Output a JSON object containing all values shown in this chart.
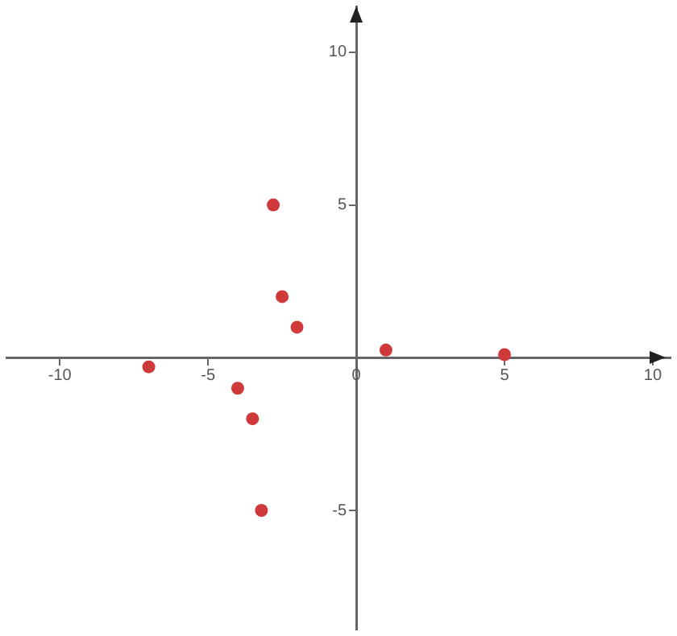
{
  "chart_data": {
    "type": "scatter",
    "x": [
      -2.8,
      -2.5,
      -2.0,
      1.0,
      5.0,
      -7.0,
      -4.0,
      -3.5,
      -3.2
    ],
    "values": [
      5.0,
      2.0,
      1.0,
      0.25,
      0.1,
      -0.3,
      -1.0,
      -2.0,
      -5.0
    ],
    "color": "#d0393a",
    "marker": "circle",
    "xlim": [
      -11.8,
      10.6
    ],
    "ylim": [
      -8.9,
      11.5
    ],
    "xticks": [
      -10,
      -5,
      0,
      5,
      10
    ],
    "yticks": [
      -5,
      5,
      10
    ],
    "grid": false,
    "legend": false
  }
}
